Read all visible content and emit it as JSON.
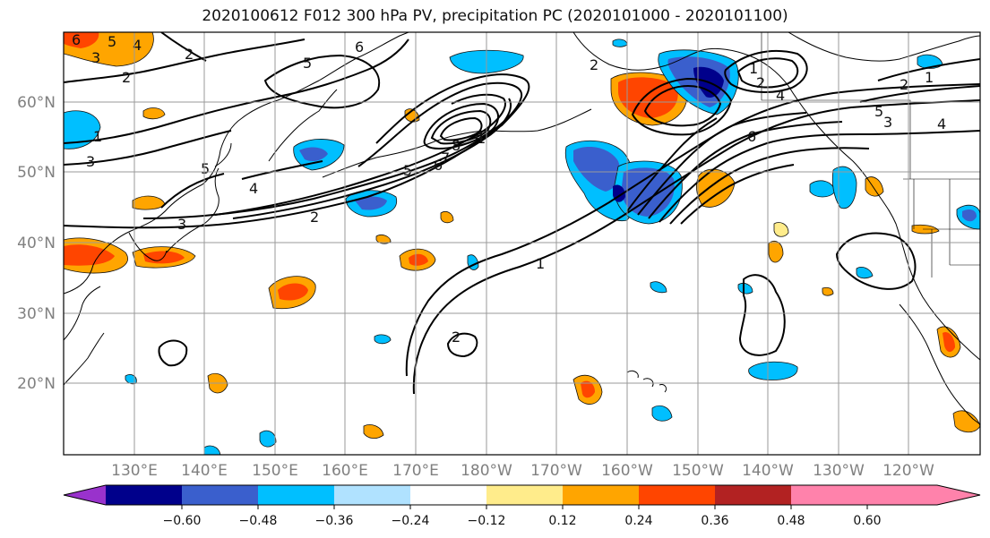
{
  "title": "2020100612 F012 300 hPa PV, precipitation PC (2020101000 - 2020101100)",
  "lat_labels": [
    "60°N",
    "50°N",
    "40°N",
    "30°N",
    "20°N"
  ],
  "lon_labels": [
    "130°E",
    "140°E",
    "150°E",
    "160°E",
    "170°E",
    "180°W",
    "170°W",
    "160°W",
    "150°W",
    "140°W",
    "130°W",
    "120°W"
  ],
  "contour_labels": [
    "6",
    "5",
    "4",
    "3",
    "2",
    "2",
    "1",
    "3",
    "5",
    "4",
    "3",
    "2",
    "5",
    "6",
    "8",
    "7",
    "6",
    "5",
    "4",
    "2",
    "1",
    "2",
    "1",
    "2",
    "4",
    "5",
    "3",
    "4",
    "6",
    "1",
    "2",
    "1"
  ],
  "colorbar": {
    "ticks": [
      "−0.60",
      "−0.48",
      "−0.36",
      "−0.24",
      "−0.12",
      "0.12",
      "0.24",
      "0.36",
      "0.48",
      "0.60"
    ],
    "colors": [
      "#9932cc",
      "#00008b",
      "#3a5fcd",
      "#00bfff",
      "#b0e2ff",
      "#ffffff",
      "#ffec8b",
      "#ffa500",
      "#ff4500",
      "#b22222",
      "#ff82ab"
    ]
  }
}
